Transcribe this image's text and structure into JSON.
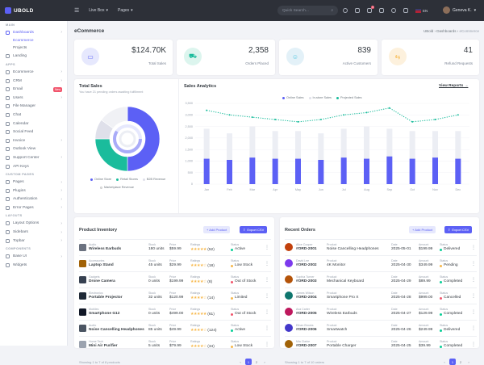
{
  "topbar": {
    "brand": "UBOLD",
    "menu": [
      "Live Box",
      "Pages"
    ],
    "search_placeholder": "Quick Search...",
    "notification_count": "3",
    "lang": "EN",
    "user_name": "Geneva K."
  },
  "sidebar": {
    "sections": [
      {
        "header": "MAIN",
        "items": [
          {
            "label": "Dashboards",
            "active": true,
            "chev": true,
            "subs": [
              {
                "label": "Ecommerce",
                "active": true
              },
              {
                "label": "Projects",
                "active": false
              }
            ]
          },
          {
            "label": "Landing"
          }
        ]
      },
      {
        "header": "APPS",
        "items": [
          {
            "label": "Ecommerce",
            "chev": true
          },
          {
            "label": "CRM",
            "chev": true
          },
          {
            "label": "Email",
            "badge": "New"
          },
          {
            "label": "Users",
            "chev": true
          },
          {
            "label": "File Manager"
          },
          {
            "label": "Chat"
          },
          {
            "label": "Calendar"
          },
          {
            "label": "Social Feed"
          },
          {
            "label": "Invoice",
            "chev": true
          },
          {
            "label": "Outlook View"
          },
          {
            "label": "Support Center",
            "chev": true
          },
          {
            "label": "API Keys"
          }
        ]
      },
      {
        "header": "CUSTOM PAGES",
        "items": [
          {
            "label": "Pages",
            "chev": true
          },
          {
            "label": "Plugins",
            "chev": true
          },
          {
            "label": "Authentication",
            "chev": true
          },
          {
            "label": "Error Pages",
            "chev": true
          }
        ]
      },
      {
        "header": "LAYOUTS",
        "items": [
          {
            "label": "Layout Options",
            "chev": true
          },
          {
            "label": "Sidebars",
            "chev": true
          },
          {
            "label": "Topbar",
            "chev": true
          }
        ]
      },
      {
        "header": "COMPONENTS",
        "items": [
          {
            "label": "Base UI",
            "chev": true
          },
          {
            "label": "Widgets"
          }
        ]
      }
    ]
  },
  "page": {
    "title": "eCommerce",
    "breadcrumb": [
      "UBold",
      "Dashboards",
      "eCommerce"
    ]
  },
  "stats": [
    {
      "value": "$124.70K",
      "label": "Total Sales",
      "icon": "wallet-icon",
      "bg": "#e6e8fd",
      "fg": "#5c60f5"
    },
    {
      "value": "2,358",
      "label": "Orders Placed",
      "icon": "cart-icon",
      "bg": "#dcf5ee",
      "fg": "#1abc9c"
    },
    {
      "value": "839",
      "label": "Active Customers",
      "icon": "users-icon",
      "bg": "#e3f1f8",
      "fg": "#4fc6e1"
    },
    {
      "value": "41",
      "label": "Refund Requests",
      "icon": "refund-icon",
      "bg": "#fdf1dd",
      "fg": "#f7b84b"
    }
  ],
  "total_sales": {
    "title": "Total Sales",
    "subtitle": "You have 21 pending orders awaiting fulfillment",
    "legend": [
      "Online Store",
      "Retail Stores",
      "B2B Revenue",
      "Marketplace Revenue"
    ]
  },
  "sales_analytics": {
    "title": "Sales Analytics",
    "view_reports": "View Reports →",
    "legend": [
      "Online Sales",
      "In-store Sales",
      "Projected Sales"
    ]
  },
  "chart_data": [
    {
      "type": "pie",
      "title": "Total Sales",
      "categories": [
        "Online Store",
        "Retail Stores",
        "B2B Revenue",
        "Marketplace Revenue"
      ],
      "values": [
        50,
        25,
        10,
        15
      ],
      "colors": [
        "#5c60f5",
        "#1abc9c",
        "#dfe0ea",
        "#f0f1f5"
      ]
    },
    {
      "type": "bar",
      "title": "Sales Analytics",
      "categories": [
        "Jan",
        "Feb",
        "Mar",
        "Apr",
        "May",
        "Jun",
        "Jul",
        "Aug",
        "Sep",
        "Oct",
        "Nov",
        "Dec"
      ],
      "ylim": [
        0,
        3500
      ],
      "yticks": [
        "3,500",
        "3,000",
        "2,500",
        "2,000",
        "1,500",
        "1,000",
        "500",
        "0"
      ],
      "series": [
        {
          "name": "Online Sales",
          "type": "bar",
          "color": "#5c60f5",
          "values": [
            1100,
            1050,
            1150,
            1100,
            1100,
            1050,
            1150,
            1100,
            1200,
            1100,
            1150,
            1100
          ]
        },
        {
          "name": "In-store Sales",
          "type": "bar",
          "color": "#eceef4",
          "values": [
            2400,
            2200,
            2500,
            2300,
            2300,
            2200,
            2400,
            2500,
            2400,
            2300,
            2300,
            2300
          ]
        },
        {
          "name": "Projected Sales",
          "type": "line",
          "color": "#1abc9c",
          "values": [
            3200,
            3000,
            2900,
            2800,
            2700,
            2800,
            3000,
            3100,
            3300,
            2700,
            2800,
            3000
          ]
        }
      ]
    }
  ],
  "inventory": {
    "title": "Product Inventory",
    "add_btn": "+ Add Product",
    "export_btn": "Export CSV",
    "headers": {
      "stock": "Stock",
      "price": "Price",
      "ratings": "Ratings",
      "status": "Status"
    },
    "rows": [
      {
        "cat": "Audio",
        "name": "Wireless Earbuds",
        "stock": "180 units",
        "price": "$59.99",
        "stars": "★★★★★",
        "count": "(52)",
        "status": "Active",
        "color": "#0acf97",
        "thumb": "#6b7280"
      },
      {
        "cat": "Accessories",
        "name": "Laptop Stand",
        "stock": "45 units",
        "price": "$29.99",
        "stars": "★★★★☆",
        "count": "(18)",
        "status": "Low Stock",
        "color": "#f7b84b",
        "thumb": "#a16207"
      },
      {
        "cat": "Gadgets",
        "name": "Drone Camera",
        "stock": "0 units",
        "price": "$199.99",
        "stars": "★★★★☆",
        "count": "(8)",
        "status": "Out of Stock",
        "color": "#f1556c",
        "thumb": "#374151"
      },
      {
        "cat": "Electronics",
        "name": "Portable Projector",
        "stock": "32 units",
        "price": "$120.99",
        "stars": "★★★★☆",
        "count": "(14)",
        "status": "Limited",
        "color": "#f7b84b",
        "thumb": "#1f2937"
      },
      {
        "cat": "Mobiles",
        "name": "Smartphone G12",
        "stock": "0 units",
        "price": "$499.00",
        "stars": "★★★★★",
        "count": "(61)",
        "status": "Out of Stock",
        "color": "#f1556c",
        "thumb": "#111827"
      },
      {
        "cat": "Audio",
        "name": "Noise Cancelling Headphones",
        "stock": "85 units",
        "price": "$49.99",
        "stars": "★★★★☆",
        "count": "(124)",
        "status": "Active",
        "color": "#0acf97",
        "thumb": "#4b5563"
      },
      {
        "cat": "Home Tech",
        "name": "Mini Air Purifier",
        "stock": "5 units",
        "price": "$79.99",
        "stars": "★★★★☆",
        "count": "(34)",
        "status": "Low Stock",
        "color": "#f7b84b",
        "thumb": "#9ca3af"
      }
    ],
    "showing": "Showing 1 to 7 of 8 products",
    "pages": [
      "‹",
      "1",
      "2",
      "›"
    ]
  },
  "orders": {
    "title": "Recent Orders",
    "add_btn": "+ Add Product",
    "export_btn": "Export CSV",
    "headers": {
      "product": "Product",
      "date": "Date",
      "amount": "Amount",
      "status": "Status"
    },
    "rows": [
      {
        "name": "Alice Cooper",
        "id": "#ORD-2001",
        "product": "Noise Cancelling Headphones",
        "date": "2025-05-01",
        "amount": "$199.99",
        "status": "Delivered",
        "color": "#0acf97",
        "ava": "#c2410c"
      },
      {
        "name": "David Lee",
        "id": "#ORD-2002",
        "product": "4K Monitor",
        "date": "2025-04-30",
        "amount": "$349.99",
        "status": "Pending",
        "color": "#f7b84b",
        "ava": "#7c3aed"
      },
      {
        "name": "Sophia Turner",
        "id": "#ORD-2003",
        "product": "Mechanical Keyboard",
        "date": "2025-04-29",
        "amount": "$89.99",
        "status": "Completed",
        "color": "#0acf97",
        "ava": "#b45309"
      },
      {
        "name": "James Wilson",
        "id": "#ORD-2004",
        "product": "Smartphone Pro X",
        "date": "2025-04-28",
        "amount": "$999.00",
        "status": "Cancelled",
        "color": "#f1556c",
        "ava": "#0f766e"
      },
      {
        "name": "Ava Carter",
        "id": "#ORD-2005",
        "product": "Wireless Earbuds",
        "date": "2025-04-27",
        "amount": "$129.99",
        "status": "Completed",
        "color": "#0acf97",
        "ava": "#be185d"
      },
      {
        "name": "Ethan Brooks",
        "id": "#ORD-2006",
        "product": "Smartwatch",
        "date": "2025-04-26",
        "amount": "$249.99",
        "status": "Delivered",
        "color": "#0acf97",
        "ava": "#4338ca"
      },
      {
        "name": "Mia Clarke",
        "id": "#ORD-2007",
        "product": "Portable Charger",
        "date": "2025-04-25",
        "amount": "$39.99",
        "status": "Completed",
        "color": "#0acf97",
        "ava": "#a16207"
      }
    ],
    "showing": "Showing 1 to 7 of 10 orders",
    "pages": [
      "‹",
      "1",
      "2",
      "›"
    ]
  }
}
